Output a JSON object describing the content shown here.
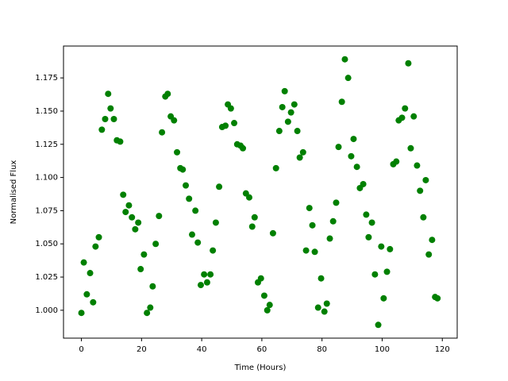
{
  "chart_data": {
    "type": "scatter",
    "x_label": "Time (Hours)",
    "y_label": "Normalised Flux",
    "color": "#008000",
    "x": [
      0,
      0.8,
      1.8,
      2.9,
      3.9,
      4.7,
      5.8,
      6.8,
      7.9,
      8.9,
      9.7,
      10.8,
      11.8,
      12.9,
      13.9,
      14.7,
      15.8,
      16.8,
      17.9,
      18.9,
      19.7,
      20.8,
      21.8,
      22.9,
      23.7,
      24.7,
      25.8,
      26.8,
      27.9,
      28.7,
      29.7,
      30.8,
      31.8,
      32.9,
      33.7,
      34.7,
      35.8,
      36.8,
      37.9,
      38.7,
      39.7,
      40.8,
      41.8,
      42.9,
      43.7,
      44.7,
      45.8,
      46.8,
      47.9,
      48.7,
      49.7,
      50.8,
      51.8,
      52.9,
      53.7,
      54.7,
      55.8,
      56.8,
      57.6,
      58.7,
      59.7,
      60.8,
      61.8,
      62.6,
      63.7,
      64.7,
      65.8,
      66.8,
      67.6,
      68.7,
      69.7,
      70.8,
      71.8,
      72.6,
      73.7,
      74.7,
      75.8,
      76.8,
      77.6,
      78.7,
      79.7,
      80.8,
      81.6,
      82.6,
      83.7,
      84.7,
      85.5,
      86.6,
      87.6,
      88.7,
      89.7,
      90.5,
      91.6,
      92.6,
      93.7,
      94.7,
      95.5,
      96.6,
      97.6,
      98.7,
      99.7,
      100.5,
      101.6,
      102.6,
      103.7,
      104.7,
      105.5,
      106.6,
      107.6,
      108.7,
      109.5,
      110.5,
      111.6,
      112.6,
      113.7,
      114.5,
      115.5,
      116.6,
      117.6,
      118.4
    ],
    "values": [
      0.998,
      1.036,
      1.012,
      1.028,
      1.006,
      1.048,
      1.055,
      1.136,
      1.144,
      1.163,
      1.152,
      1.144,
      1.128,
      1.127,
      1.087,
      1.074,
      1.079,
      1.07,
      1.061,
      1.066,
      1.031,
      1.042,
      0.998,
      1.002,
      1.018,
      1.05,
      1.071,
      1.134,
      1.161,
      1.163,
      1.146,
      1.143,
      1.119,
      1.107,
      1.106,
      1.094,
      1.084,
      1.057,
      1.075,
      1.051,
      1.019,
      1.027,
      1.021,
      1.027,
      1.045,
      1.066,
      1.093,
      1.138,
      1.139,
      1.155,
      1.152,
      1.141,
      1.125,
      1.124,
      1.122,
      1.088,
      1.085,
      1.063,
      1.07,
      1.021,
      1.024,
      1.011,
      1.0,
      1.004,
      1.058,
      1.107,
      1.135,
      1.153,
      1.165,
      1.142,
      1.149,
      1.155,
      1.135,
      1.115,
      1.119,
      1.045,
      1.077,
      1.064,
      1.044,
      1.002,
      1.024,
      0.999,
      1.005,
      1.054,
      1.067,
      1.081,
      1.123,
      1.157,
      1.189,
      1.175,
      1.116,
      1.129,
      1.108,
      1.092,
      1.095,
      1.072,
      1.055,
      1.066,
      1.027,
      0.989,
      1.048,
      1.009,
      1.029,
      1.046,
      1.11,
      1.112,
      1.143,
      1.145,
      1.152,
      1.186,
      1.122,
      1.146,
      1.109,
      1.09,
      1.07,
      1.098,
      1.042,
      1.053,
      1.01,
      1.009
    ],
    "xlim": [
      -5.95,
      124.95
    ],
    "xticks": [
      0,
      20,
      40,
      60,
      80,
      100,
      120
    ],
    "ylim": [
      0.979,
      1.199
    ],
    "yticks": [
      {
        "value": 1.0,
        "label": "1.000"
      },
      {
        "value": 1.025,
        "label": "1.025"
      },
      {
        "value": 1.05,
        "label": "1.050"
      },
      {
        "value": 1.075,
        "label": "1.075"
      },
      {
        "value": 1.1,
        "label": "1.100"
      },
      {
        "value": 1.125,
        "label": "1.125"
      },
      {
        "value": 1.15,
        "label": "1.150"
      },
      {
        "value": 1.175,
        "label": "1.175"
      }
    ]
  }
}
